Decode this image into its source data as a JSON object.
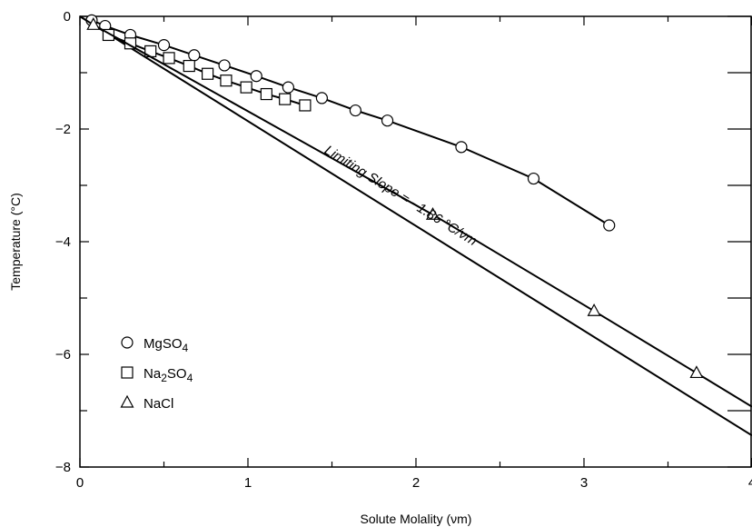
{
  "chart_data": {
    "type": "line",
    "xlabel": "Solute Molality (νm)",
    "ylabel": "Temperature (°C)",
    "xlim": [
      0,
      4
    ],
    "ylim": [
      -8,
      0
    ],
    "x_ticks": [
      "0",
      "1",
      "2",
      "3",
      "4"
    ],
    "y_ticks": [
      "0",
      "−2",
      "−4",
      "−6",
      "−8"
    ],
    "grid": false,
    "legend_position": "lower-left",
    "series": [
      {
        "name": "MgSO4",
        "marker": "circle",
        "points": [
          [
            0.07,
            -0.07
          ],
          [
            0.15,
            -0.17
          ],
          [
            0.3,
            -0.33
          ],
          [
            0.5,
            -0.51
          ],
          [
            0.68,
            -0.69
          ],
          [
            0.86,
            -0.87
          ],
          [
            1.05,
            -1.06
          ],
          [
            1.24,
            -1.26
          ],
          [
            1.44,
            -1.45
          ],
          [
            1.64,
            -1.67
          ],
          [
            1.83,
            -1.85
          ],
          [
            2.27,
            -2.32
          ],
          [
            2.7,
            -2.88
          ],
          [
            3.15,
            -3.71
          ]
        ]
      },
      {
        "name": "Na2SO4",
        "marker": "square",
        "points": [
          [
            0.17,
            -0.33
          ],
          [
            0.3,
            -0.48
          ],
          [
            0.42,
            -0.62
          ],
          [
            0.53,
            -0.74
          ],
          [
            0.65,
            -0.88
          ],
          [
            0.76,
            -1.02
          ],
          [
            0.87,
            -1.14
          ],
          [
            0.99,
            -1.26
          ],
          [
            1.11,
            -1.38
          ],
          [
            1.22,
            -1.47
          ],
          [
            1.34,
            -1.58
          ]
        ]
      },
      {
        "name": "NaCl",
        "marker": "triangle",
        "points": [
          [
            0.0,
            0.0
          ],
          [
            0.08,
            -0.15
          ],
          [
            2.1,
            -3.52
          ],
          [
            3.06,
            -5.23
          ],
          [
            3.67,
            -6.33
          ],
          [
            4.0,
            -6.93
          ]
        ]
      }
    ],
    "reference_line": {
      "label": "Limiting Slope = −1.86 °C/νm",
      "slope": -1.86,
      "x_end": 4.0
    },
    "legend": [
      {
        "sym": "○",
        "name": "MgSO",
        "sub": "4",
        "tail": ""
      },
      {
        "sym": "□",
        "name": "Na",
        "sub": "2",
        "tail": "SO",
        "sub2": "4"
      },
      {
        "sym": "△",
        "name": "NaCl",
        "sub": "",
        "tail": ""
      }
    ]
  }
}
